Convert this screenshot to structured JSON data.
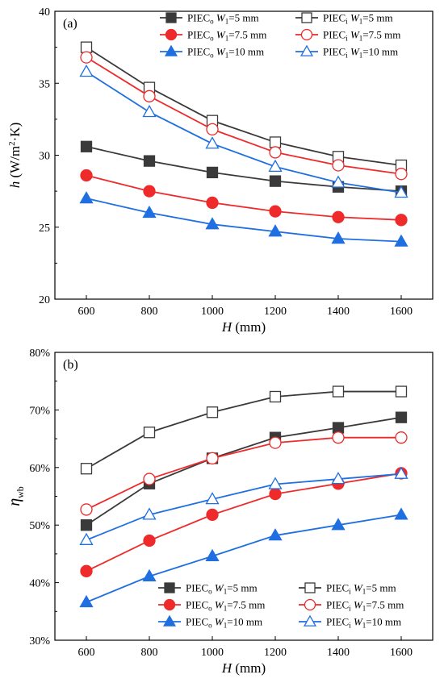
{
  "chart_data": [
    {
      "type": "line",
      "panel": "(a)",
      "xlabel": "H (mm)",
      "ylabel": "h (W/m²·K)",
      "x": [
        600,
        800,
        1000,
        1200,
        1400,
        1600
      ],
      "xlim": [
        500,
        1700
      ],
      "ylim": [
        20,
        40
      ],
      "yticks": [
        20,
        25,
        30,
        35,
        40
      ],
      "legend_position": "top-right",
      "series": [
        {
          "name": "PIECo W1=5 mm",
          "base": "PIEC",
          "sub": "o",
          "suffix": "=5 mm",
          "color": "#3a3a3a",
          "marker": "square",
          "filled": true,
          "values": [
            30.6,
            29.6,
            28.8,
            28.2,
            27.8,
            27.5
          ]
        },
        {
          "name": "PIECi W1=5 mm",
          "base": "PIEC",
          "sub": "i",
          "suffix": "=5 mm",
          "color": "#3a3a3a",
          "marker": "square",
          "filled": false,
          "values": [
            37.5,
            34.7,
            32.4,
            30.9,
            29.9,
            29.3
          ]
        },
        {
          "name": "PIECo W1=7.5 mm",
          "base": "PIEC",
          "sub": "o",
          "suffix": "=7.5 mm",
          "color": "#ee2a2a",
          "marker": "circle",
          "filled": true,
          "values": [
            28.6,
            27.5,
            26.7,
            26.1,
            25.7,
            25.5
          ]
        },
        {
          "name": "PIECi W1=7.5 mm",
          "base": "PIEC",
          "sub": "i",
          "suffix": "=7.5 mm",
          "color": "#ee2a2a",
          "marker": "circle",
          "filled": false,
          "values": [
            36.8,
            34.1,
            31.8,
            30.2,
            29.3,
            28.7
          ]
        },
        {
          "name": "PIECo W1=10 mm",
          "base": "PIEC",
          "sub": "o",
          "suffix": "=10 mm",
          "color": "#1f6fe0",
          "marker": "triangle",
          "filled": true,
          "values": [
            27.0,
            26.0,
            25.2,
            24.7,
            24.2,
            24.0
          ]
        },
        {
          "name": "PIECi W1=10 mm",
          "base": "PIEC",
          "sub": "i",
          "suffix": "=10 mm",
          "color": "#1f6fe0",
          "marker": "triangle",
          "filled": false,
          "values": [
            35.8,
            33.0,
            30.8,
            29.2,
            28.1,
            27.4
          ]
        }
      ]
    },
    {
      "type": "line",
      "panel": "(b)",
      "xlabel": "H (mm)",
      "ylabel": "ηwb",
      "x": [
        600,
        800,
        1000,
        1200,
        1400,
        1600
      ],
      "xlim": [
        500,
        1700
      ],
      "ylim": [
        30,
        80
      ],
      "yticks": [
        30,
        40,
        50,
        60,
        70,
        80
      ],
      "ytick_format": "percent",
      "legend_position": "bottom-right",
      "series": [
        {
          "name": "PIECo W1=5 mm",
          "base": "PIEC",
          "sub": "o",
          "suffix": "=5 mm",
          "color": "#3a3a3a",
          "marker": "square",
          "filled": true,
          "values": [
            50.0,
            57.2,
            61.6,
            65.2,
            66.9,
            68.7
          ]
        },
        {
          "name": "PIECi W1=5 mm",
          "base": "PIEC",
          "sub": "i",
          "suffix": "=5 mm",
          "color": "#3a3a3a",
          "marker": "square",
          "filled": false,
          "values": [
            59.8,
            66.1,
            69.6,
            72.3,
            73.2,
            73.2
          ]
        },
        {
          "name": "PIECo W1=7.5 mm",
          "base": "PIEC",
          "sub": "o",
          "suffix": "=7.5 mm",
          "color": "#ee2a2a",
          "marker": "circle",
          "filled": true,
          "values": [
            42.0,
            47.3,
            51.8,
            55.4,
            57.2,
            59.0
          ]
        },
        {
          "name": "PIECi W1=7.5 mm",
          "base": "PIEC",
          "sub": "i",
          "suffix": "=7.5 mm",
          "color": "#ee2a2a",
          "marker": "circle",
          "filled": false,
          "values": [
            52.7,
            58.0,
            61.6,
            64.3,
            65.2,
            65.2
          ]
        },
        {
          "name": "PIECo W1=10 mm",
          "base": "PIEC",
          "sub": "o",
          "suffix": "=10 mm",
          "color": "#1f6fe0",
          "marker": "triangle",
          "filled": true,
          "values": [
            36.6,
            41.1,
            44.6,
            48.2,
            50.0,
            51.8
          ]
        },
        {
          "name": "PIECi W1=10 mm",
          "base": "PIEC",
          "sub": "i",
          "suffix": "=10 mm",
          "color": "#1f6fe0",
          "marker": "triangle",
          "filled": false,
          "values": [
            47.4,
            51.8,
            54.5,
            57.1,
            58.0,
            58.9
          ]
        }
      ]
    }
  ]
}
